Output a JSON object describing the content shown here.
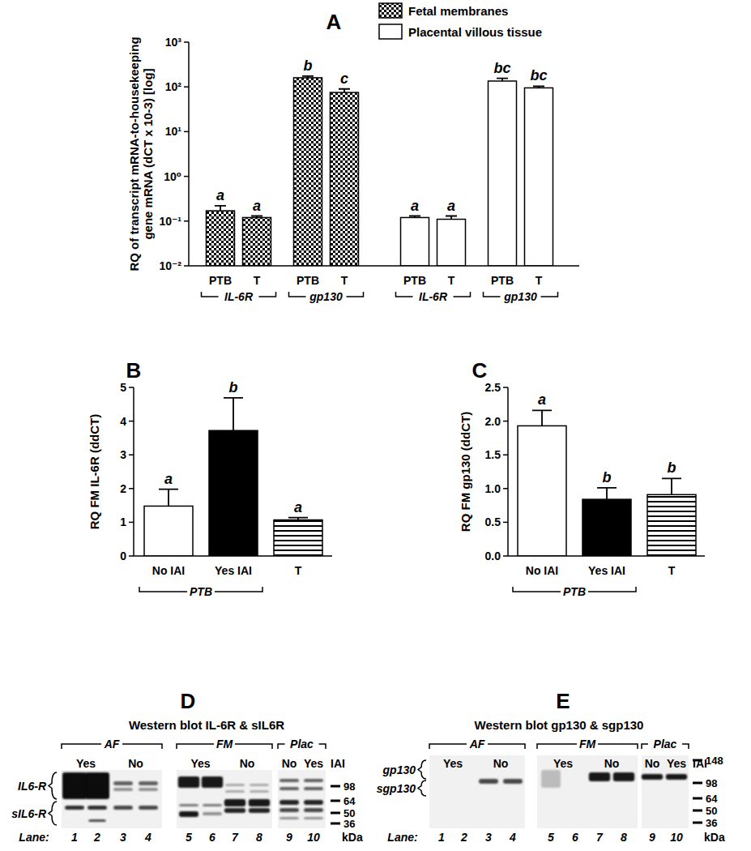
{
  "chart_data": [
    {
      "type": "bar",
      "title": "A",
      "log": "y",
      "legend": "top",
      "ylabel": "RQ of transcript mRNA-to-housekeeping gene mRNA (dCT x 10-3) [log]",
      "categories": [
        "PTB",
        "T",
        "PTB",
        "T",
        "PTB",
        "T",
        "PTB",
        "T"
      ],
      "groups": [
        {
          "label": "IL-6R",
          "categories": [
            0,
            1
          ]
        },
        {
          "label": "gp130",
          "categories": [
            2,
            3
          ]
        },
        {
          "label": "IL-6R",
          "categories": [
            4,
            5
          ]
        },
        {
          "label": "gp130",
          "categories": [
            6,
            7
          ]
        }
      ],
      "series": [
        {
          "name": "Fetal membranes",
          "color": "#000000",
          "marker": "checkered",
          "values": [
            0.17,
            0.12,
            160,
            75,
            null,
            null,
            null,
            null
          ],
          "errors": [
            0.05,
            0.01,
            15,
            15,
            null,
            null,
            null,
            null
          ]
        },
        {
          "name": "Placental villous tissue",
          "color": "#ffffff",
          "values": [
            null,
            null,
            null,
            null,
            0.12,
            0.11,
            135,
            95
          ],
          "errors": [
            null,
            null,
            null,
            null,
            0.01,
            0.02,
            20,
            8
          ]
        }
      ],
      "annotations": [
        "a",
        "a",
        "b",
        "c",
        "a",
        "a",
        "bc",
        "bc"
      ],
      "ylim": [
        0.01,
        1000
      ],
      "yticks": [
        {
          "value": 0.01,
          "label": "10⁻²"
        },
        {
          "value": 0.1,
          "label": "10⁻¹"
        },
        {
          "value": 1,
          "label": "10⁰"
        },
        {
          "value": 10,
          "label": "10¹"
        },
        {
          "value": 100,
          "label": "10²"
        },
        {
          "value": 1000,
          "label": "10³"
        }
      ]
    },
    {
      "type": "bar",
      "title": "B",
      "ylabel": "RQ FM IL-6R (ddCT)",
      "categories": [
        "No IAI",
        "Yes IAI",
        "T"
      ],
      "groups": [
        {
          "label": "PTB",
          "categories": [
            0,
            1
          ]
        }
      ],
      "values": [
        1.48,
        3.72,
        1.07
      ],
      "errors": [
        0.5,
        0.97,
        0.07
      ],
      "colors": [
        "#ffffff",
        "#000000",
        "#ffffff"
      ],
      "annotations": [
        "a",
        "b",
        "a"
      ],
      "ylim": [
        0,
        5
      ],
      "yticks": [
        0,
        1,
        2,
        3,
        4,
        5
      ]
    },
    {
      "type": "bar",
      "title": "C",
      "ylabel": "RQ FM gp130 (ddCT)",
      "categories": [
        "No IAI",
        "Yes IAI",
        "T"
      ],
      "groups": [
        {
          "label": "PTB",
          "categories": [
            0,
            1
          ]
        }
      ],
      "values": [
        1.93,
        0.84,
        0.91
      ],
      "errors": [
        0.23,
        0.17,
        0.24
      ],
      "colors": [
        "#ffffff",
        "#000000",
        "#ffffff"
      ],
      "annotations": [
        "a",
        "b",
        "b"
      ],
      "ylim": [
        0,
        2.5
      ],
      "yticks": [
        {
          "value": 0,
          "label": "0.0"
        },
        0.5,
        {
          "value": 1,
          "label": "1.0"
        },
        1.5,
        {
          "value": 2,
          "label": "2.0"
        },
        2.5
      ]
    }
  ],
  "blots": [
    {
      "panel": "D",
      "title": "Western blot  IL-6R & sIL6R",
      "groups": [
        {
          "label": "AF",
          "iai": [
            "Yes",
            "No"
          ]
        },
        {
          "label": "FM",
          "iai": [
            "Yes",
            "No"
          ]
        },
        {
          "label": "Plac",
          "iai": [
            "No",
            "Yes"
          ]
        }
      ],
      "iai_title": "IAI",
      "bands": [
        {
          "label": "IL6-R"
        },
        {
          "label": "sIL6-R"
        }
      ],
      "markers": [
        98,
        64,
        50,
        36
      ],
      "marker_unit": "kDa",
      "lane_title": "Lane:",
      "lanes": [
        1,
        2,
        3,
        4,
        5,
        6,
        7,
        8,
        9,
        10
      ]
    },
    {
      "panel": "E",
      "title": "Western blot gp130 & sgp130",
      "groups": [
        {
          "label": "AF",
          "iai": [
            "Yes",
            "No"
          ]
        },
        {
          "label": "FM",
          "iai": [
            "Yes",
            "No"
          ]
        },
        {
          "label": "Plac",
          "iai": [
            "No",
            "Yes"
          ]
        }
      ],
      "iai_title": "IAI",
      "bands": [
        {
          "label": "gp130"
        },
        {
          "label": "sgp130"
        }
      ],
      "markers": [
        148,
        98,
        64,
        50,
        36
      ],
      "marker_unit": "kDa",
      "lane_title": "Lane:",
      "lanes": [
        1,
        2,
        3,
        4,
        5,
        6,
        7,
        8,
        9,
        10
      ]
    }
  ]
}
